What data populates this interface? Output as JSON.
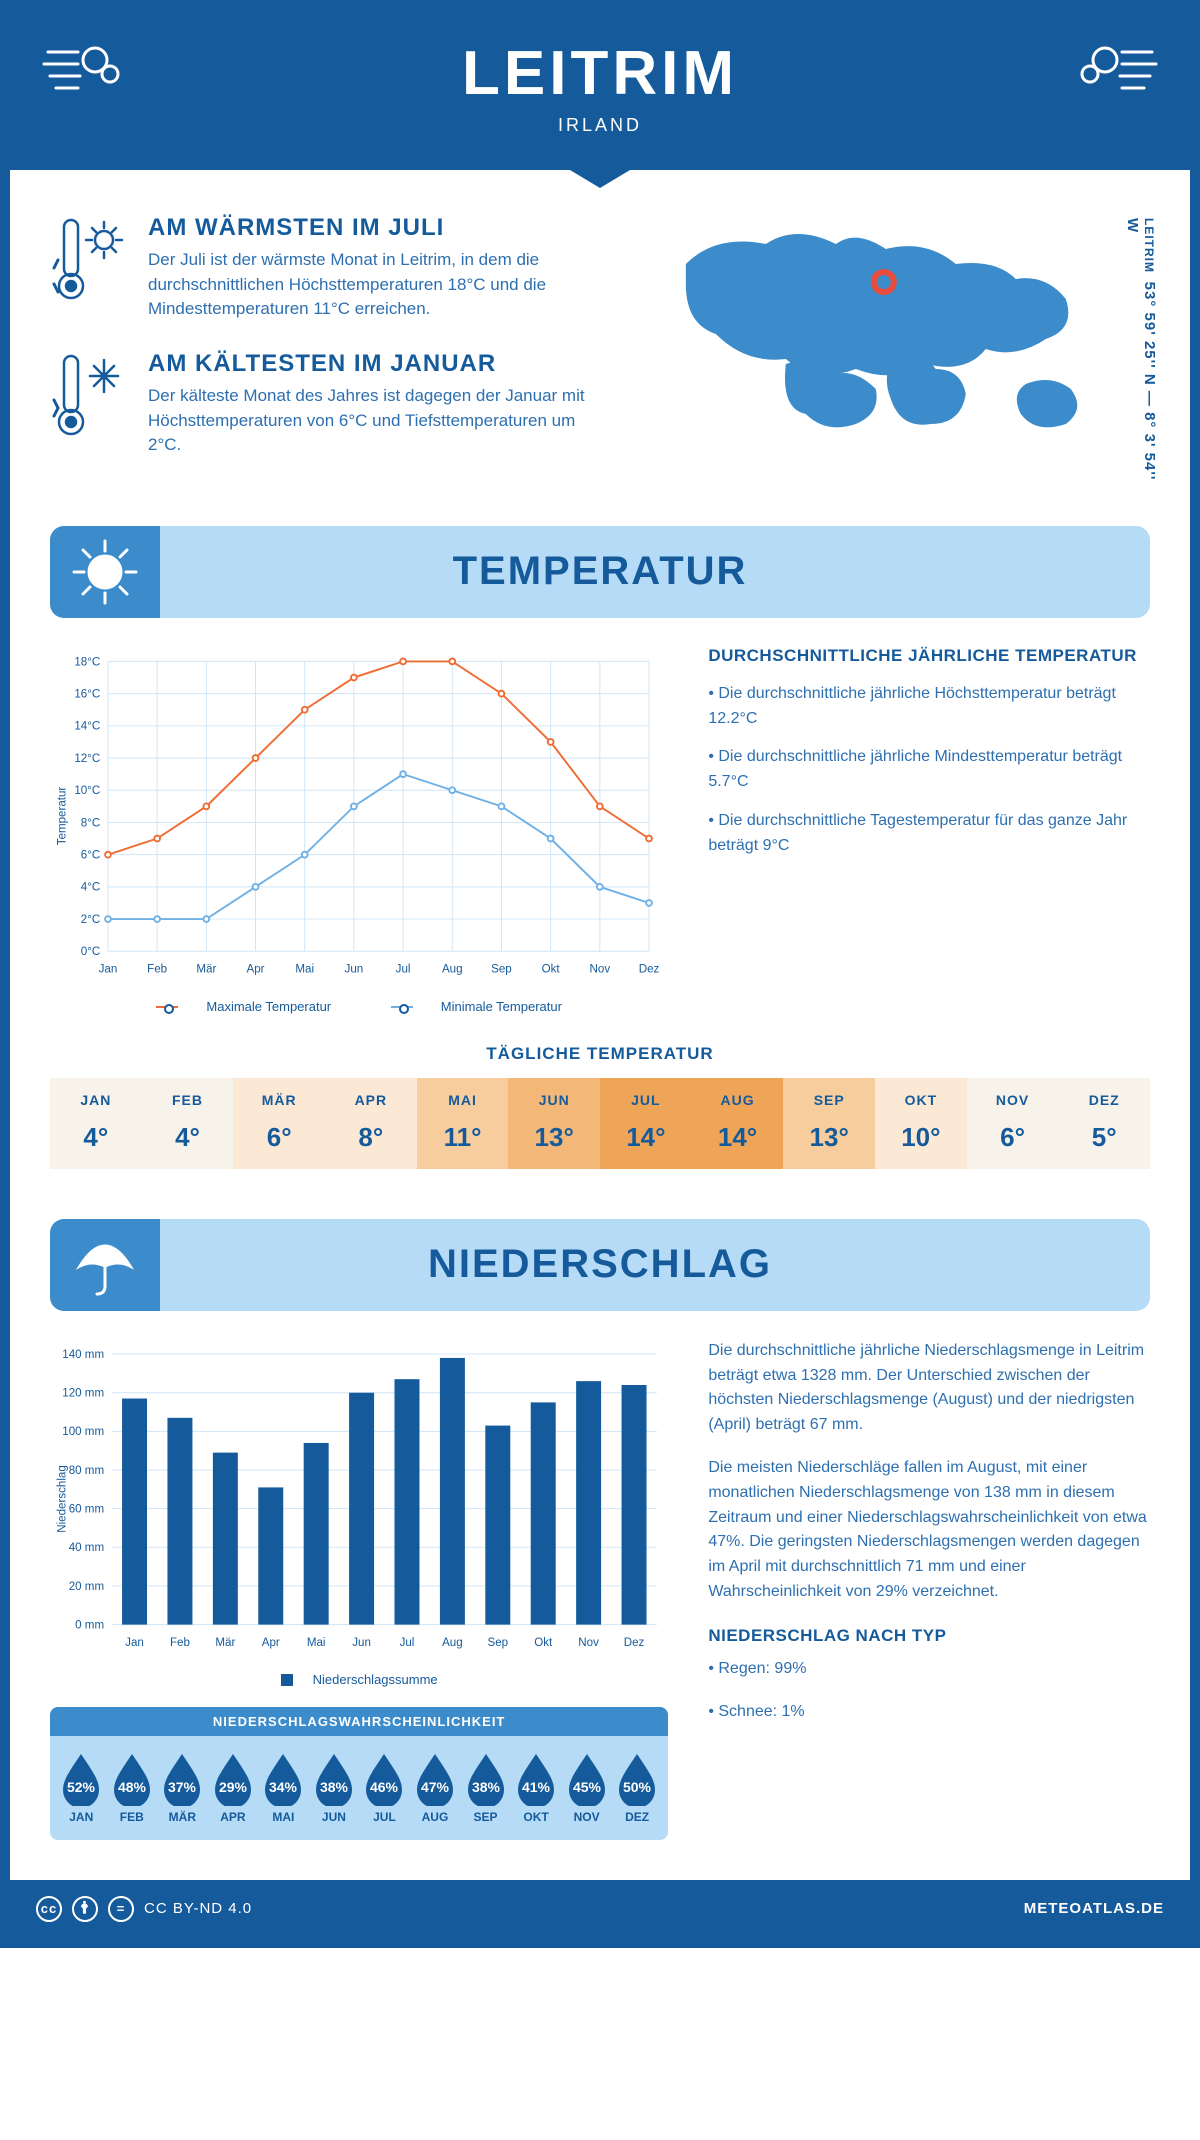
{
  "colors": {
    "primary": "#155a9b",
    "mid": "#3c8ccc",
    "light": "#b6dbf7",
    "orange": "#ef6c33",
    "lblue": "#6fb1e6",
    "grid": "#cfe5f6",
    "text2": "#2d6fb0"
  },
  "header": {
    "title": "LEITRIM",
    "subtitle": "IRLAND"
  },
  "coords": {
    "label": "LEITRIM",
    "value": "53° 59' 25'' N — 8° 3' 54'' W"
  },
  "warm": {
    "title": "AM WÄRMSTEN IM JULI",
    "text": "Der Juli ist der wärmste Monat in Leitrim, in dem die durchschnittlichen Höchsttemperaturen 18°C und die Mindesttemperaturen 11°C erreichen."
  },
  "cold": {
    "title": "AM KÄLTESTEN IM JANUAR",
    "text": "Der kälteste Monat des Jahres ist dagegen der Januar mit Höchsttemperaturen von 6°C und Tiefsttemperaturen um 2°C."
  },
  "section_temp": "TEMPERATUR",
  "section_precip": "NIEDERSCHLAG",
  "months": [
    "Jan",
    "Feb",
    "Mär",
    "Apr",
    "Mai",
    "Jun",
    "Jul",
    "Aug",
    "Sep",
    "Okt",
    "Nov",
    "Dez"
  ],
  "months_uc": [
    "JAN",
    "FEB",
    "MÄR",
    "APR",
    "MAI",
    "JUN",
    "JUL",
    "AUG",
    "SEP",
    "OKT",
    "NOV",
    "DEZ"
  ],
  "temp_chart": {
    "type": "line",
    "ylabel": "Temperatur",
    "ylim": [
      0,
      18
    ],
    "ytick_step": 2,
    "ytick_suffix": "°C",
    "max": {
      "label": "Maximale Temperatur",
      "color": "#ef6c33",
      "values": [
        6,
        7,
        9,
        12,
        15,
        17,
        18,
        18,
        16,
        13,
        9,
        7
      ]
    },
    "min": {
      "label": "Minimale Temperatur",
      "color": "#6fb1e6",
      "values": [
        2,
        2,
        2,
        4,
        6,
        9,
        11,
        10,
        9,
        7,
        4,
        3
      ]
    },
    "line_width": 2,
    "marker_r": 3,
    "grid_color": "#cfe5f6",
    "bg": "#ffffff"
  },
  "temp_text": {
    "heading": "DURCHSCHNITTLICHE JÄHRLICHE TEMPERATUR",
    "b1": "• Die durchschnittliche jährliche Höchsttemperatur beträgt 12.2°C",
    "b2": "• Die durchschnittliche jährliche Mindesttemperatur beträgt 5.7°C",
    "b3": "• Die durchschnittliche Tagestemperatur für das ganze Jahr beträgt 9°C"
  },
  "daily_heading": "TÄGLICHE TEMPERATUR",
  "daily": {
    "values": [
      "4°",
      "4°",
      "6°",
      "8°",
      "11°",
      "13°",
      "14°",
      "14°",
      "13°",
      "10°",
      "6°",
      "5°"
    ],
    "colors": [
      "#f7f2ea",
      "#f7f2ea",
      "#fbe9d6",
      "#fbe9d6",
      "#f7cd9e",
      "#f3b877",
      "#efa558",
      "#efa558",
      "#f7cd9e",
      "#fbe9d6",
      "#f7f2ea",
      "#f7f2ea"
    ]
  },
  "precip_chart": {
    "type": "bar",
    "ylabel": "Niederschlag",
    "ylim": [
      0,
      140
    ],
    "ytick_step": 20,
    "ytick_suffix": " mm",
    "values": [
      117,
      107,
      89,
      71,
      94,
      120,
      127,
      138,
      103,
      115,
      126,
      124
    ],
    "bar_color": "#155a9b",
    "bar_width": 0.55,
    "grid_color": "#cfe5f6",
    "legend": "Niederschlagssumme"
  },
  "precip_text": {
    "p1": "Die durchschnittliche jährliche Niederschlagsmenge in Leitrim beträgt etwa 1328 mm. Der Unterschied zwischen der höchsten Niederschlagsmenge (August) und der niedrigsten (April) beträgt 67 mm.",
    "p2": "Die meisten Niederschläge fallen im August, mit einer monatlichen Niederschlagsmenge von 138 mm in diesem Zeitraum und einer Niederschlagswahrscheinlichkeit von etwa 47%. Die geringsten Niederschlagsmengen werden dagegen im April mit durchschnittlich 71 mm und einer Wahrscheinlichkeit von 29% verzeichnet.",
    "h": "NIEDERSCHLAG NACH TYP",
    "b1": "• Regen: 99%",
    "b2": "• Schnee: 1%"
  },
  "prob": {
    "heading": "NIEDERSCHLAGSWAHRSCHEINLICHKEIT",
    "values": [
      "52%",
      "48%",
      "37%",
      "29%",
      "34%",
      "38%",
      "46%",
      "47%",
      "38%",
      "41%",
      "45%",
      "50%"
    ]
  },
  "footer": {
    "license": "CC BY-ND 4.0",
    "site": "METEOATLAS.DE"
  }
}
